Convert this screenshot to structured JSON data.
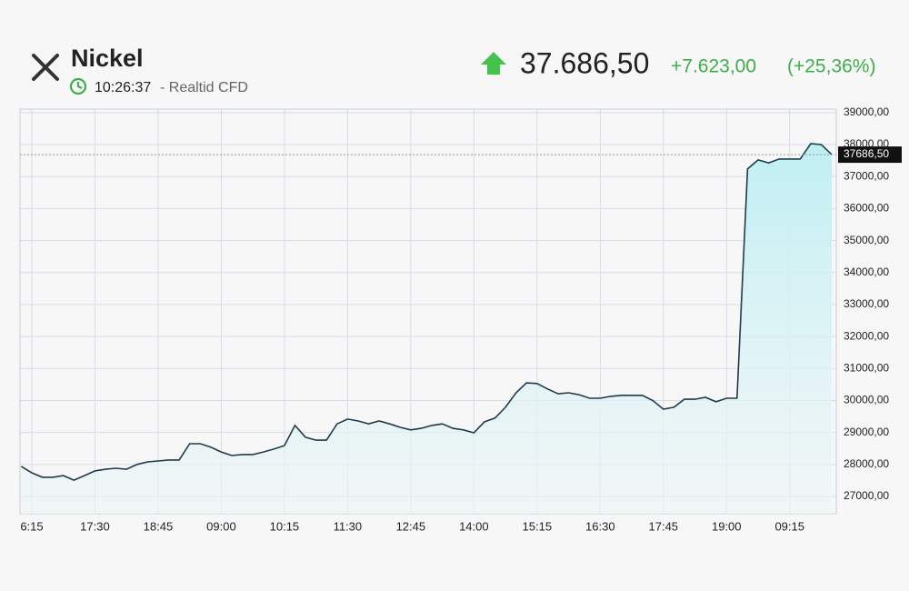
{
  "header": {
    "instrument": "Nickel",
    "time": "10:26:37",
    "source": "- Realtid CFD",
    "price": "37.686,50",
    "change": "+7.623,00",
    "change_percent": "(+25,36%)"
  },
  "chart_data": {
    "type": "area",
    "color": "#1f3b4d",
    "fill_color": "#bfeff3",
    "grid": true,
    "categories": [
      null,
      "6:15",
      null,
      null,
      null,
      null,
      null,
      "17:30",
      null,
      null,
      null,
      null,
      null,
      "18:45",
      null,
      null,
      null,
      null,
      null,
      "09:00",
      null,
      null,
      null,
      null,
      null,
      "10:15",
      null,
      null,
      null,
      null,
      null,
      "11:30",
      null,
      null,
      null,
      null,
      null,
      "12:45",
      null,
      null,
      null,
      null,
      null,
      "14:00",
      null,
      null,
      null,
      null,
      null,
      "15:15",
      null,
      null,
      null,
      null,
      null,
      "16:30",
      null,
      null,
      null,
      null,
      null,
      "17:45",
      null,
      null,
      null,
      null,
      null,
      "19:00",
      null,
      null,
      null,
      null,
      null,
      "09:15",
      null,
      null,
      null,
      null
    ],
    "values": [
      27940,
      27740,
      27600,
      27600,
      27650,
      27510,
      27650,
      27800,
      27850,
      27880,
      27850,
      28000,
      28080,
      28110,
      28140,
      28140,
      28650,
      28650,
      28540,
      28390,
      28280,
      28310,
      28310,
      28390,
      28480,
      28590,
      29220,
      28850,
      28760,
      28760,
      29270,
      29420,
      29360,
      29270,
      29360,
      29270,
      29160,
      29080,
      29130,
      29220,
      29270,
      29130,
      29080,
      28990,
      29330,
      29450,
      29790,
      30240,
      30550,
      30530,
      30360,
      30210,
      30240,
      30180,
      30070,
      30070,
      30130,
      30160,
      30160,
      30160,
      30000,
      29730,
      29790,
      30040,
      30040,
      30100,
      29960,
      30070,
      30070,
      37240,
      37520,
      37430,
      37550,
      37550,
      37550,
      38030,
      38000,
      37686.5
    ],
    "ylim": [
      26460,
      39110
    ],
    "yticks": [
      {
        "value": 27000,
        "label": "27000,00"
      },
      {
        "value": 28000,
        "label": "28000,00"
      },
      {
        "value": 29000,
        "label": "29000,00"
      },
      {
        "value": 30000,
        "label": "30000,00"
      },
      {
        "value": 31000,
        "label": "31000,00"
      },
      {
        "value": 32000,
        "label": "32000,00"
      },
      {
        "value": 33000,
        "label": "33000,00"
      },
      {
        "value": 34000,
        "label": "34000,00"
      },
      {
        "value": 35000,
        "label": "35000,00"
      },
      {
        "value": 36000,
        "label": "36000,00"
      },
      {
        "value": 37000,
        "label": "37000,00"
      },
      {
        "value": 38000,
        "label": "38000,00"
      },
      {
        "value": 39000,
        "label": "39000,00"
      }
    ],
    "last_price": {
      "value": 37686.5,
      "label": "37686,50"
    }
  }
}
